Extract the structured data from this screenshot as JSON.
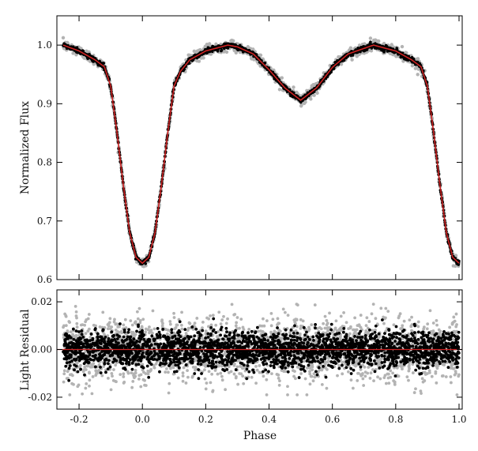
{
  "colors": {
    "obs_gray": "#b3b3b3",
    "obs_black": "#000000",
    "model_red": "#cc2222",
    "axis": "#000000"
  },
  "chart_data": [
    {
      "name": "light-curve-panel",
      "type": "scatter",
      "ylabel": "Normalized Flux",
      "xlim": [
        -0.27,
        1.01
      ],
      "ylim": [
        0.6,
        1.05
      ],
      "x_ticks": [
        -0.2,
        0.0,
        0.2,
        0.4,
        0.6,
        0.8,
        1.0
      ],
      "y_ticks": [
        0.6,
        0.7,
        0.8,
        0.9,
        1.0
      ],
      "y_tick_labels": [
        "0.6",
        "0.7",
        "0.8",
        "0.9",
        "1.0"
      ],
      "x_tick_labels_shown": false,
      "series": [
        {
          "layer": "observed",
          "style": "dense dots, gray scatter envelope and black core",
          "x": [
            -0.25,
            -0.2,
            -0.15,
            -0.12,
            -0.1,
            -0.08,
            -0.06,
            -0.04,
            -0.02,
            0.0,
            0.02,
            0.04,
            0.06,
            0.08,
            0.1,
            0.12,
            0.15,
            0.2,
            0.27,
            0.3,
            0.35,
            0.4,
            0.45,
            0.5,
            0.55,
            0.6,
            0.65,
            0.73,
            0.8,
            0.85,
            0.88,
            0.9,
            0.92,
            0.94,
            0.96,
            0.98,
            1.0
          ],
          "y": [
            1.0,
            0.99,
            0.975,
            0.963,
            0.93,
            0.85,
            0.76,
            0.68,
            0.638,
            0.628,
            0.638,
            0.68,
            0.76,
            0.85,
            0.93,
            0.955,
            0.975,
            0.99,
            1.0,
            0.997,
            0.985,
            0.958,
            0.927,
            0.906,
            0.927,
            0.962,
            0.985,
            1.0,
            0.99,
            0.975,
            0.963,
            0.93,
            0.85,
            0.76,
            0.68,
            0.638,
            0.628
          ]
        },
        {
          "layer": "model",
          "style": "red line",
          "x": [
            -0.25,
            -0.2,
            -0.15,
            -0.12,
            -0.1,
            -0.08,
            -0.06,
            -0.04,
            -0.02,
            0.0,
            0.02,
            0.04,
            0.06,
            0.08,
            0.1,
            0.12,
            0.15,
            0.2,
            0.27,
            0.3,
            0.35,
            0.4,
            0.45,
            0.5,
            0.55,
            0.6,
            0.65,
            0.73,
            0.8,
            0.85,
            0.88,
            0.9,
            0.92,
            0.94,
            0.96,
            0.98,
            1.0
          ],
          "y": [
            1.0,
            0.99,
            0.975,
            0.963,
            0.93,
            0.85,
            0.76,
            0.68,
            0.638,
            0.628,
            0.638,
            0.68,
            0.76,
            0.85,
            0.93,
            0.955,
            0.975,
            0.99,
            1.0,
            0.997,
            0.985,
            0.958,
            0.927,
            0.906,
            0.927,
            0.962,
            0.985,
            1.0,
            0.99,
            0.975,
            0.963,
            0.93,
            0.85,
            0.76,
            0.68,
            0.638,
            0.628
          ]
        }
      ]
    },
    {
      "name": "residual-panel",
      "type": "scatter",
      "xlabel": "Phase",
      "ylabel": "Light Residual",
      "xlim": [
        -0.27,
        1.01
      ],
      "ylim": [
        -0.025,
        0.025
      ],
      "x_ticks": [
        -0.2,
        0.0,
        0.2,
        0.4,
        0.6,
        0.8,
        1.0
      ],
      "x_tick_labels": [
        "-0.2",
        "0.0",
        "0.2",
        "0.4",
        "0.6",
        "0.8",
        "1.0"
      ],
      "y_ticks": [
        -0.02,
        0.0,
        0.02
      ],
      "y_tick_labels": [
        "-0.02",
        "0.00",
        "0.02"
      ],
      "series": [
        {
          "layer": "residual_gray",
          "style": "gray scatter band",
          "x_range": [
            -0.25,
            1.0
          ],
          "spread": 0.02
        },
        {
          "layer": "residual_black",
          "style": "black scatter band",
          "x_range": [
            -0.25,
            1.0
          ],
          "spread": 0.013
        },
        {
          "layer": "zero_line",
          "style": "red line",
          "y": 0.0
        }
      ]
    }
  ]
}
